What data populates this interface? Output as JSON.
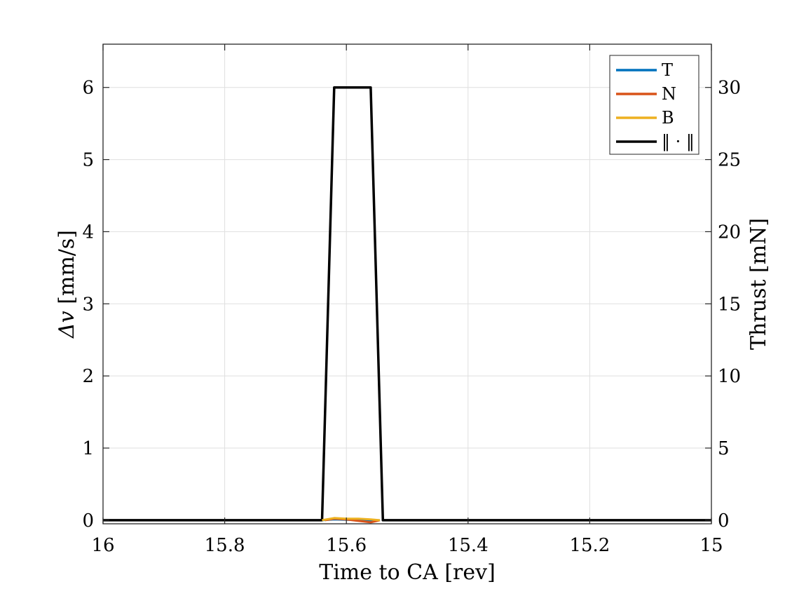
{
  "chart_data": {
    "type": "line",
    "xlabel": "Time to CA [rev]",
    "ylabel_left": "Δv [mm/s]",
    "ylabel_left_parts": {
      "symbol": "Δv",
      "unit": " [mm/s]"
    },
    "ylabel_right": "Thrust [mN]",
    "xlim": [
      16,
      15
    ],
    "x_reversed": true,
    "ylim_left": [
      -0.05,
      6.6
    ],
    "ylim_right": [
      -0.25,
      33
    ],
    "x_ticks": [
      16,
      15.8,
      15.6,
      15.4,
      15.2,
      15
    ],
    "x_tick_labels": [
      "16",
      "15.8",
      "15.6",
      "15.4",
      "15.2",
      "15"
    ],
    "y_left_ticks": [
      0,
      1,
      2,
      3,
      4,
      5,
      6
    ],
    "y_left_tick_labels": [
      "0",
      "1",
      "2",
      "3",
      "4",
      "5",
      "6"
    ],
    "y_right_ticks": [
      0,
      5,
      10,
      15,
      20,
      25,
      30
    ],
    "y_right_tick_labels": [
      "0",
      "5",
      "10",
      "15",
      "20",
      "25",
      "30"
    ],
    "grid": true,
    "legend_position": "top-right",
    "series": [
      {
        "name": "T",
        "axis": "left",
        "color": "#0072BD",
        "x": [
          15.64,
          15.62,
          15.6,
          15.58,
          15.56,
          15.545
        ],
        "y": [
          0.0,
          0.01,
          0.005,
          0.0,
          -0.01,
          0.0
        ]
      },
      {
        "name": "N",
        "axis": "left",
        "color": "#D95319",
        "x": [
          15.635,
          15.62,
          15.6,
          15.58,
          15.56,
          15.545
        ],
        "y": [
          0.0,
          0.02,
          0.01,
          -0.01,
          -0.03,
          0.0
        ]
      },
      {
        "name": "B",
        "axis": "left",
        "color": "#EDB120",
        "x": [
          15.64,
          15.62,
          15.6,
          15.58,
          15.56,
          15.545
        ],
        "y": [
          0.0,
          0.03,
          0.02,
          0.02,
          0.01,
          0.0
        ]
      },
      {
        "name": "‖ · ‖",
        "axis": "right",
        "color": "#000000",
        "x": [
          16,
          15.64,
          15.62,
          15.56,
          15.54,
          15
        ],
        "y": [
          0,
          0,
          30,
          30,
          0,
          0
        ]
      }
    ]
  }
}
